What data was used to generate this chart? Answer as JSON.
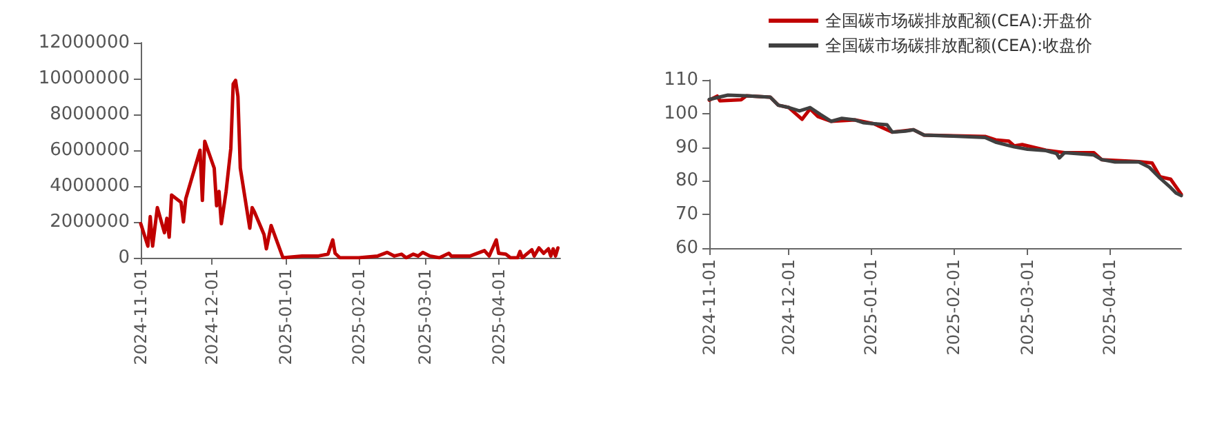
{
  "chart_data": [
    {
      "type": "line",
      "line_style": "solid",
      "marker": "none",
      "grid": false,
      "legend": false,
      "xlim": [
        "2024-11-01",
        "2025-04-27"
      ],
      "xticks": [
        "2024-11-01",
        "2024-12-01",
        "2025-01-01",
        "2025-02-01",
        "2025-03-01",
        "2025-04-01"
      ],
      "ylim": [
        0,
        12000000
      ],
      "yticks": [
        0,
        2000000,
        4000000,
        6000000,
        8000000,
        10000000,
        12000000
      ],
      "series": [
        {
          "color": "#c00000",
          "x": [
            "2024-11-01",
            "2024-11-04",
            "2024-11-05",
            "2024-11-06",
            "2024-11-08",
            "2024-11-11",
            "2024-11-12",
            "2024-11-13",
            "2024-11-14",
            "2024-11-18",
            "2024-11-19",
            "2024-11-20",
            "2024-11-26",
            "2024-11-27",
            "2024-11-28",
            "2024-12-02",
            "2024-12-03",
            "2024-12-04",
            "2024-12-05",
            "2024-12-07",
            "2024-12-09",
            "2024-12-10",
            "2024-12-11",
            "2024-12-12",
            "2024-12-13",
            "2024-12-17",
            "2024-12-18",
            "2024-12-19",
            "2024-12-23",
            "2024-12-24",
            "2024-12-26",
            "2024-12-31",
            "2025-01-08",
            "2025-01-15",
            "2025-01-19",
            "2025-01-21",
            "2025-01-22",
            "2025-01-24",
            "2025-02-01",
            "2025-02-09",
            "2025-02-13",
            "2025-02-16",
            "2025-02-19",
            "2025-02-21",
            "2025-02-24",
            "2025-02-26",
            "2025-02-28",
            "2025-03-03",
            "2025-03-07",
            "2025-03-11",
            "2025-03-12",
            "2025-03-20",
            "2025-03-26",
            "2025-03-28",
            "2025-03-31",
            "2025-04-01",
            "2025-04-04",
            "2025-04-06",
            "2025-04-09",
            "2025-04-10",
            "2025-04-11",
            "2025-04-15",
            "2025-04-16",
            "2025-04-18",
            "2025-04-20",
            "2025-04-22",
            "2025-04-23",
            "2025-04-24",
            "2025-04-25",
            "2025-04-26"
          ],
          "values": [
            1900000,
            650000,
            2300000,
            650000,
            2800000,
            1400000,
            2200000,
            1150000,
            3500000,
            3100000,
            2000000,
            3300000,
            6000000,
            3200000,
            6500000,
            5000000,
            2900000,
            3700000,
            1900000,
            3700000,
            6100000,
            9700000,
            9900000,
            9000000,
            5000000,
            1650000,
            2800000,
            2550000,
            1300000,
            500000,
            1800000,
            0,
            100000,
            100000,
            200000,
            1000000,
            250000,
            0,
            0,
            100000,
            300000,
            100000,
            200000,
            0,
            200000,
            100000,
            300000,
            100000,
            0,
            250000,
            100000,
            100000,
            400000,
            100000,
            1000000,
            250000,
            200000,
            0,
            0,
            350000,
            0,
            450000,
            100000,
            550000,
            250000,
            500000,
            100000,
            500000,
            100000,
            550000
          ]
        }
      ]
    },
    {
      "type": "line",
      "line_style": "solid",
      "marker": "none",
      "grid": false,
      "legend": "top",
      "xlim": [
        "2024-11-01",
        "2025-04-28"
      ],
      "xticks": [
        "2024-11-01",
        "2024-12-01",
        "2025-01-01",
        "2025-02-01",
        "2025-03-01",
        "2025-04-01"
      ],
      "ylim": [
        60,
        110
      ],
      "yticks": [
        60,
        70,
        80,
        90,
        100,
        110
      ],
      "series": [
        {
          "name": "全国碳市场碳排放配额(CEA):开盘价",
          "color": "#c00000",
          "x": [
            "2024-11-01",
            "2024-11-04",
            "2024-11-05",
            "2024-11-13",
            "2024-11-15",
            "2024-11-24",
            "2024-11-27",
            "2024-12-01",
            "2024-12-06",
            "2024-12-09",
            "2024-12-12",
            "2024-12-17",
            "2024-12-26",
            "2025-01-02",
            "2025-01-09",
            "2025-01-17",
            "2025-01-21",
            "2025-02-13",
            "2025-02-17",
            "2025-02-22",
            "2025-02-24",
            "2025-02-27",
            "2025-03-08",
            "2025-03-15",
            "2025-03-26",
            "2025-03-29",
            "2025-04-12",
            "2025-04-17",
            "2025-04-20",
            "2025-04-24",
            "2025-04-28"
          ],
          "values": [
            104.0,
            105.2,
            103.8,
            104.1,
            105.3,
            104.9,
            102.5,
            101.8,
            98.3,
            101.4,
            99.1,
            97.7,
            98.1,
            97.0,
            94.5,
            95.2,
            93.6,
            93.2,
            92.2,
            91.8,
            90.4,
            90.8,
            89.1,
            88.4,
            88.4,
            86.3,
            85.7,
            85.3,
            81.2,
            80.5,
            76.0
          ]
        },
        {
          "name": "全国碳市场碳排放配额(CEA):收盘价",
          "color": "#404040",
          "x": [
            "2024-11-01",
            "2024-11-08",
            "2024-11-15",
            "2024-11-24",
            "2024-11-27",
            "2024-12-01",
            "2024-12-05",
            "2024-12-09",
            "2024-12-13",
            "2024-12-17",
            "2024-12-21",
            "2024-12-26",
            "2024-12-29",
            "2025-01-02",
            "2025-01-07",
            "2025-01-09",
            "2025-01-14",
            "2025-01-17",
            "2025-01-21",
            "2025-02-01",
            "2025-02-13",
            "2025-02-17",
            "2025-02-24",
            "2025-03-01",
            "2025-03-08",
            "2025-03-12",
            "2025-03-13",
            "2025-03-15",
            "2025-03-26",
            "2025-03-29",
            "2025-04-03",
            "2025-04-12",
            "2025-04-16",
            "2025-04-20",
            "2025-04-24",
            "2025-04-26",
            "2025-04-28"
          ],
          "values": [
            104.2,
            105.5,
            105.3,
            104.9,
            102.5,
            101.8,
            100.8,
            101.8,
            99.7,
            97.7,
            98.6,
            98.1,
            97.3,
            97.0,
            96.7,
            94.5,
            94.8,
            95.2,
            93.6,
            93.3,
            92.9,
            91.5,
            90.1,
            89.4,
            89.0,
            88.1,
            86.8,
            88.4,
            87.7,
            86.3,
            85.6,
            85.6,
            84.0,
            80.8,
            78.0,
            76.4,
            75.6
          ]
        }
      ]
    }
  ]
}
